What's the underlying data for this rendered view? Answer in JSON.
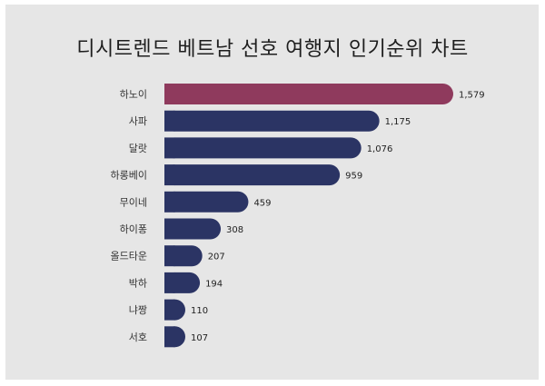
{
  "title": "디시트렌드 베트남 선호 여행지 인기순위 차트",
  "colors": {
    "highlight": "#8f3a5d",
    "bar": "#2b3464",
    "highlight_label": "#8f3a5d",
    "label": "#222222"
  },
  "chart_data": {
    "type": "bar",
    "orientation": "horizontal",
    "categories": [
      "하노이",
      "사파",
      "달랏",
      "하롱베이",
      "무이네",
      "하이퐁",
      "올드타운",
      "박하",
      "냐짱",
      "서호"
    ],
    "values": [
      1579,
      1175,
      1076,
      959,
      459,
      308,
      207,
      194,
      110,
      107
    ],
    "value_labels": [
      "1,579",
      "1,175",
      "1,076",
      "959",
      "459",
      "308",
      "207",
      "194",
      "110",
      "107"
    ],
    "title": "디시트렌드 베트남 선호 여행지 인기순위 차트",
    "xlabel": "",
    "ylabel": "",
    "xlim": [
      0,
      1579
    ],
    "grid": false,
    "highlight_index": 0
  }
}
